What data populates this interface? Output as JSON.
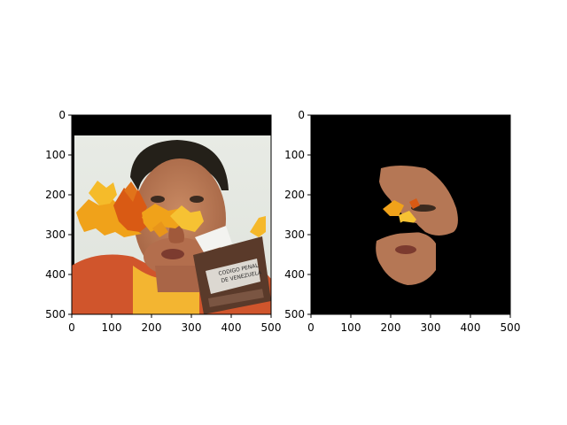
{
  "panels": [
    {
      "id": "left",
      "description": "Photo of a man in an orange shirt holding a small book; the upper face region is covered by orange/yellow autumn leaves; a black band fills the top of the frame.",
      "book_text": [
        "CODIGO PENAL",
        "DE VENEZUELA"
      ],
      "xticks": [
        "0",
        "100",
        "200",
        "300",
        "400",
        "500"
      ],
      "yticks": [
        "0",
        "100",
        "200",
        "300",
        "400",
        "500"
      ]
    },
    {
      "id": "right",
      "description": "Segmentation mask: black background with only a cut-out of the skin region of the face visible (cheek, nose, mouth and chin, plus a few leaf fragments).",
      "xticks": [
        "0",
        "100",
        "200",
        "300",
        "400",
        "500"
      ],
      "yticks": [
        "0",
        "100",
        "200",
        "300",
        "400",
        "500"
      ]
    }
  ],
  "colors": {
    "skin": "#b57755",
    "shirt": "#d0552c",
    "leaf_orange": "#f0a21a",
    "leaf_red": "#d95a14",
    "book": "#5a3a2a"
  }
}
